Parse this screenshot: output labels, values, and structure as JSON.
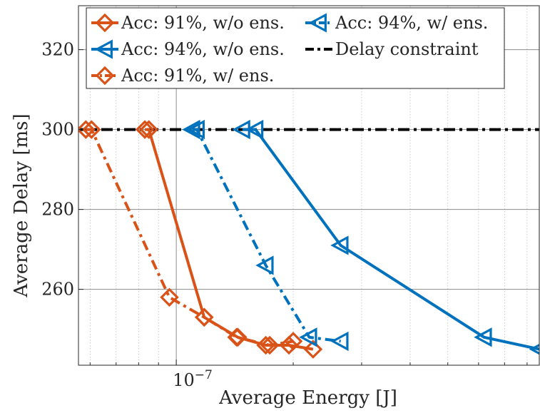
{
  "chart_data": {
    "type": "line",
    "xscale": "log",
    "xlabel": "Average Energy [J]",
    "ylabel": "Average Delay [ms]",
    "xlim": [
      5.6e-08,
      8.6e-07
    ],
    "ylim": [
      241,
      331
    ],
    "x_tick_label": {
      "base": "10",
      "exponent": "−7",
      "value": 1e-07
    },
    "y_ticks": [
      260,
      280,
      300,
      320
    ],
    "y_tick_labels": [
      "260",
      "280",
      "300",
      "320"
    ],
    "grid": true,
    "legend_position": "top-left",
    "legend_entries": [
      {
        "label": "Acc: 91%, w/o ens."
      },
      {
        "label": "Acc: 94%, w/ ens."
      },
      {
        "label": "Acc: 94%, w/o ens."
      },
      {
        "label": "Delay constraint"
      },
      {
        "label": "Acc: 91%, w/ ens."
      }
    ],
    "constraint": {
      "label": "Delay constraint",
      "y": 300,
      "color": "#000000",
      "dash": "dash-dot"
    },
    "series": [
      {
        "name": "Acc: 91%, w/o ens.",
        "color": "#D95319",
        "marker": "diamond",
        "dash": "solid",
        "x": [
          8.3e-08,
          8.5e-08,
          1.18e-07,
          1.44e-07,
          1.7e-07,
          1.95e-07,
          2.25e-07
        ],
        "y": [
          300,
          300,
          253,
          248,
          246,
          246,
          245
        ]
      },
      {
        "name": "Acc: 94%, w/ ens.",
        "color": "#0072BD",
        "marker": "triangle-left",
        "dash": "dash-dot",
        "x": [
          1.1e-07,
          1.13e-07,
          1.7e-07,
          2.2e-07,
          2.65e-07
        ],
        "y": [
          300,
          300,
          266,
          248,
          247
        ]
      },
      {
        "name": "Acc: 94%, w/o ens.",
        "color": "#0072BD",
        "marker": "triangle-left",
        "dash": "solid",
        "x": [
          1.48e-07,
          1.6e-07,
          2.65e-07,
          6.2e-07,
          8.6e-07
        ],
        "y": [
          300,
          300,
          271,
          248,
          245
        ]
      },
      {
        "name": "Acc: 91%, w/ ens.",
        "color": "#D95319",
        "marker": "diamond",
        "dash": "dash-dot",
        "x": [
          5.85e-08,
          6.05e-08,
          9.6e-08,
          1.18e-07,
          1.43e-07,
          1.74e-07,
          2e-07
        ],
        "y": [
          300,
          300,
          258,
          253,
          248,
          246,
          247
        ]
      }
    ]
  }
}
